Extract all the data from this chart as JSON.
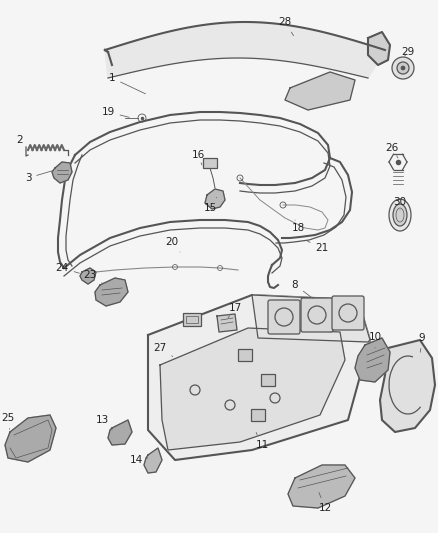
{
  "bg_color": "#f5f5f5",
  "line_color": "#555555",
  "dark_color": "#333333",
  "label_color": "#222222",
  "figsize": [
    4.38,
    5.33
  ],
  "dpi": 100
}
